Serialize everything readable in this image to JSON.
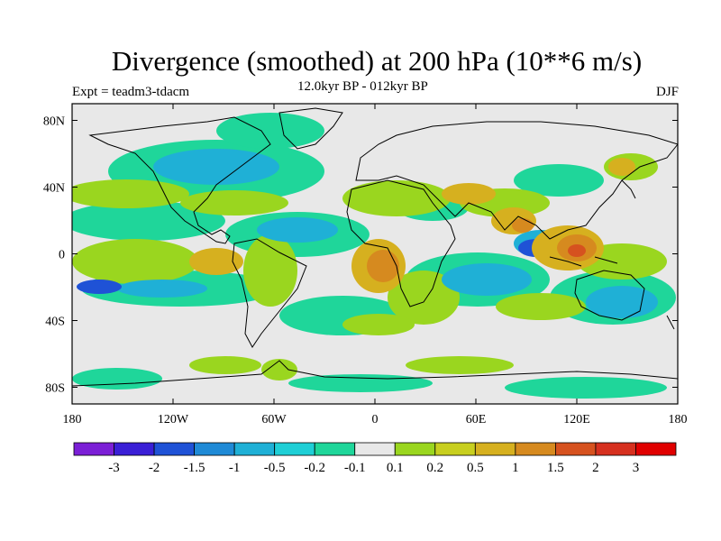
{
  "title": "Divergence (smoothed) at 200 hPa (10**6 m/s)",
  "subtitle": "12.0kyr BP - 012kyr BP",
  "experiment": "Expt = teadm3-tdacm",
  "season": "DJF",
  "colors": {
    "land_outline": "#000000",
    "neutral": "#e8e8e8",
    "frame": "#000000"
  },
  "map": {
    "lon_range": [
      -180,
      180
    ],
    "lat_range": [
      -90,
      90
    ],
    "lon_ticks": [
      {
        "value": -180,
        "label": "180"
      },
      {
        "value": -120,
        "label": "120W"
      },
      {
        "value": -60,
        "label": "60W"
      },
      {
        "value": 0,
        "label": "0"
      },
      {
        "value": 60,
        "label": "60E"
      },
      {
        "value": 120,
        "label": "120E"
      },
      {
        "value": 180,
        "label": "180"
      }
    ],
    "lat_ticks": [
      {
        "value": 80,
        "label": "80N"
      },
      {
        "value": 40,
        "label": "40N"
      },
      {
        "value": 0,
        "label": "0"
      },
      {
        "value": -40,
        "label": "40S"
      },
      {
        "value": -80,
        "label": "80S"
      }
    ]
  },
  "colorbar": {
    "labels": [
      "-3",
      "-2",
      "-1.5",
      "-1",
      "-0.5",
      "-0.2",
      "-0.1",
      "0.1",
      "0.2",
      "0.5",
      "1",
      "1.5",
      "2",
      "3"
    ],
    "colors": [
      "#7b1fd6",
      "#3a1fd6",
      "#1f52d6",
      "#1f8ad6",
      "#1fb0d6",
      "#1fcfd6",
      "#1fd69a",
      "#e8e8e8",
      "#9ad61f",
      "#c8cf1f",
      "#d6b01f",
      "#d68a1f",
      "#d6521f",
      "#d6301f",
      "#e00000"
    ]
  }
}
